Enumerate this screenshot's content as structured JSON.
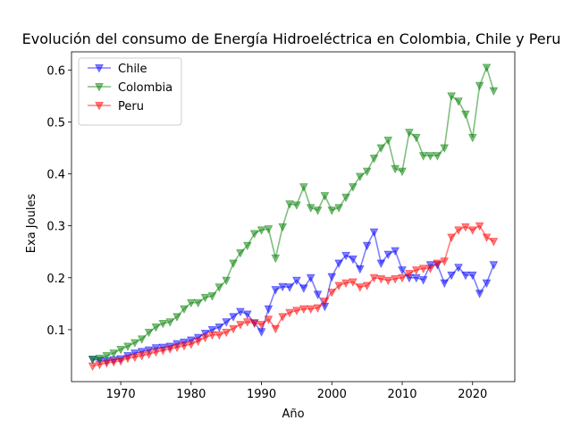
{
  "chart_data": {
    "type": "line",
    "title": "Evolución del consumo de Energía Hidroeléctrica en Colombia, Chile y Peru",
    "xlabel": "Año",
    "ylabel": "Exa Joules",
    "xlim": [
      1963,
      2026
    ],
    "ylim": [
      0.0,
      0.635
    ],
    "xticks": [
      1970,
      1980,
      1990,
      2000,
      2010,
      2020
    ],
    "yticks": [
      0.1,
      0.2,
      0.3,
      0.4,
      0.5,
      0.6
    ],
    "ytick_labels": [
      "0.1",
      "0.2",
      "0.3",
      "0.4",
      "0.5",
      "0.6"
    ],
    "grid": false,
    "legend_position": "top-left",
    "marker": "triangle-down",
    "x": [
      1966,
      1967,
      1968,
      1969,
      1970,
      1971,
      1972,
      1973,
      1974,
      1975,
      1976,
      1977,
      1978,
      1979,
      1980,
      1981,
      1982,
      1983,
      1984,
      1985,
      1986,
      1987,
      1988,
      1989,
      1990,
      1991,
      1992,
      1993,
      1994,
      1995,
      1996,
      1997,
      1998,
      1999,
      2000,
      2001,
      2002,
      2003,
      2004,
      2005,
      2006,
      2007,
      2008,
      2009,
      2010,
      2011,
      2012,
      2013,
      2014,
      2015,
      2016,
      2017,
      2018,
      2019,
      2020,
      2021,
      2022,
      2023
    ],
    "series": [
      {
        "name": "Chile",
        "color": "#0000ff",
        "values": [
          0.043,
          0.041,
          0.04,
          0.042,
          0.044,
          0.05,
          0.055,
          0.058,
          0.061,
          0.065,
          0.066,
          0.068,
          0.073,
          0.076,
          0.08,
          0.085,
          0.093,
          0.1,
          0.105,
          0.115,
          0.125,
          0.135,
          0.13,
          0.113,
          0.096,
          0.14,
          0.177,
          0.183,
          0.182,
          0.195,
          0.18,
          0.2,
          0.168,
          0.145,
          0.202,
          0.228,
          0.243,
          0.236,
          0.217,
          0.262,
          0.288,
          0.228,
          0.245,
          0.252,
          0.215,
          0.2,
          0.2,
          0.196,
          0.225,
          0.225,
          0.19,
          0.205,
          0.22,
          0.205,
          0.205,
          0.17,
          0.19,
          0.225
        ]
      },
      {
        "name": "Colombia",
        "color": "#008000",
        "values": [
          0.043,
          0.045,
          0.05,
          0.055,
          0.062,
          0.068,
          0.075,
          0.082,
          0.095,
          0.105,
          0.112,
          0.115,
          0.125,
          0.14,
          0.152,
          0.152,
          0.162,
          0.165,
          0.182,
          0.195,
          0.228,
          0.248,
          0.262,
          0.285,
          0.292,
          0.294,
          0.238,
          0.298,
          0.342,
          0.34,
          0.375,
          0.335,
          0.33,
          0.358,
          0.33,
          0.335,
          0.355,
          0.375,
          0.395,
          0.405,
          0.43,
          0.45,
          0.465,
          0.41,
          0.405,
          0.48,
          0.47,
          0.435,
          0.435,
          0.435,
          0.45,
          0.55,
          0.54,
          0.515,
          0.47,
          0.57,
          0.605,
          0.56
        ]
      },
      {
        "name": "Peru",
        "color": "#ff0000",
        "values": [
          0.03,
          0.033,
          0.036,
          0.038,
          0.04,
          0.045,
          0.047,
          0.05,
          0.053,
          0.057,
          0.06,
          0.063,
          0.066,
          0.069,
          0.072,
          0.078,
          0.085,
          0.09,
          0.09,
          0.095,
          0.102,
          0.11,
          0.115,
          0.113,
          0.11,
          0.12,
          0.102,
          0.125,
          0.133,
          0.137,
          0.14,
          0.14,
          0.142,
          0.155,
          0.172,
          0.185,
          0.19,
          0.192,
          0.182,
          0.185,
          0.2,
          0.198,
          0.195,
          0.198,
          0.2,
          0.208,
          0.215,
          0.218,
          0.218,
          0.228,
          0.232,
          0.278,
          0.292,
          0.298,
          0.292,
          0.3,
          0.278,
          0.27
        ]
      }
    ]
  }
}
